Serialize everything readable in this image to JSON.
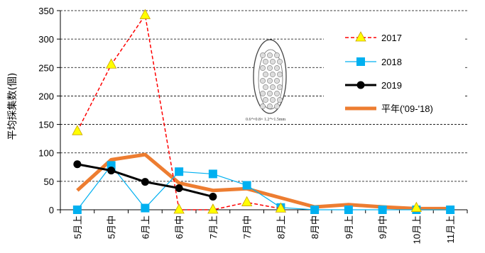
{
  "chart_data": {
    "type": "line",
    "ylabel": "平均採集数(個)",
    "xlabel": "",
    "ylim": [
      0,
      350
    ],
    "yticks": [
      0,
      50,
      100,
      150,
      200,
      250,
      300,
      350
    ],
    "categories": [
      "5月上",
      "5月中",
      "6月上",
      "6月中",
      "7月上",
      "7月中",
      "8月上",
      "8月中",
      "9月上",
      "9月中",
      "10月上",
      "11月上"
    ],
    "grid": "horizontal dashed",
    "legend": "top-right",
    "series": [
      {
        "name": "2017",
        "style": "dashed",
        "marker": "triangle",
        "color": "#ff0000",
        "marker_color": "#ffff00",
        "values": [
          138,
          255,
          342,
          0,
          0,
          13,
          2,
          null,
          null,
          null,
          3,
          null
        ]
      },
      {
        "name": "2018",
        "style": "solid",
        "marker": "square",
        "color": "#00b0f0",
        "marker_color": "#00b0f0",
        "values": [
          0,
          78,
          3,
          67,
          63,
          43,
          4,
          0,
          0,
          0,
          0,
          0
        ]
      },
      {
        "name": "2019",
        "style": "solid-thick",
        "marker": "circle",
        "color": "#000000",
        "marker_color": "#000000",
        "values": [
          80,
          69,
          49,
          38,
          23,
          null,
          null,
          null,
          null,
          null,
          null,
          null
        ]
      },
      {
        "name": "平年('09-'18)",
        "style": "solid-thicker",
        "marker": "none",
        "color": "#ed7d31",
        "values": [
          34,
          88,
          97,
          47,
          34,
          37,
          21,
          5,
          9,
          5,
          2,
          2
        ]
      }
    ],
    "inset_caption": "0.6～0.8× 1.2～1.5mm"
  }
}
